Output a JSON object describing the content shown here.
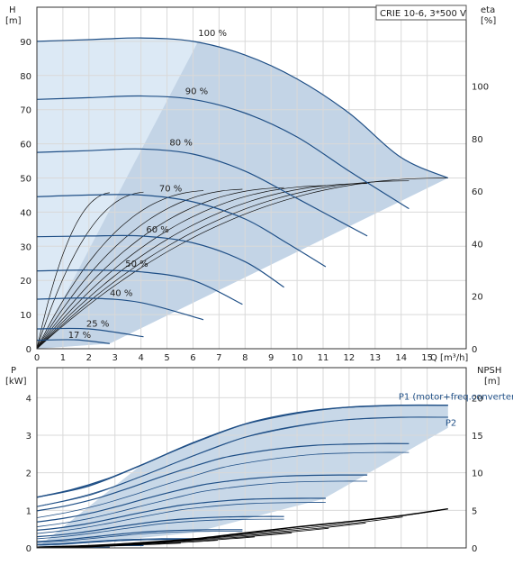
{
  "chart_data": [
    {
      "type": "line",
      "title": "CRIE 10-6, 3*500 V",
      "xlabel": "Q [m³/h]",
      "ylabel_left_symbol": "H",
      "ylabel_left_unit": "[m]",
      "ylabel_right_symbol": "eta",
      "ylabel_right_unit": "[%]",
      "xlim": [
        0,
        16.5
      ],
      "ylim_left": [
        0,
        100
      ],
      "ylim_right": [
        0,
        130
      ],
      "x_ticks": [
        "0",
        "1",
        "2",
        "3",
        "4",
        "5",
        "6",
        "7",
        "8",
        "9",
        "10",
        "11",
        "12",
        "13",
        "14",
        "15"
      ],
      "y_ticks_left": [
        "0",
        "10",
        "20",
        "30",
        "40",
        "50",
        "60",
        "70",
        "80",
        "90"
      ],
      "y_ticks_right": [
        "0",
        "20",
        "40",
        "60",
        "80",
        "100"
      ],
      "grid": true,
      "series": [
        {
          "name": "100 %",
          "x": [
            0,
            2,
            4,
            6,
            8,
            10,
            12,
            14,
            15.8
          ],
          "values": [
            90,
            90.5,
            91,
            90,
            86,
            79,
            69,
            56,
            50
          ],
          "label_at": [
            6.2,
            91.5
          ]
        },
        {
          "name": "90 %",
          "x": [
            0,
            2,
            4,
            6,
            8,
            10,
            12,
            14.3
          ],
          "values": [
            73,
            73.5,
            74,
            73,
            69,
            62,
            52,
            41
          ],
          "label_at": [
            5.7,
            74.5
          ]
        },
        {
          "name": "80 %",
          "x": [
            0,
            2,
            4,
            6,
            8,
            10,
            12.7
          ],
          "values": [
            57.5,
            58,
            58.5,
            57,
            52,
            44,
            33
          ],
          "label_at": [
            5.1,
            59.5
          ]
        },
        {
          "name": "70 %",
          "x": [
            0,
            2,
            4,
            6,
            8,
            9.6,
            11.1
          ],
          "values": [
            44.5,
            45,
            45,
            43,
            38,
            31,
            24
          ],
          "label_at": [
            4.7,
            46
          ]
        },
        {
          "name": "60 %",
          "x": [
            0,
            2,
            4,
            6,
            8,
            9.5
          ],
          "values": [
            32.8,
            33,
            33,
            31,
            25.5,
            18
          ],
          "label_at": [
            4.2,
            34
          ]
        },
        {
          "name": "50 %",
          "x": [
            0,
            2,
            4,
            6,
            7.9
          ],
          "values": [
            22.8,
            23,
            22.5,
            20,
            13
          ],
          "label_at": [
            3.4,
            24
          ]
        },
        {
          "name": "40 %",
          "x": [
            0,
            2,
            4,
            6.4
          ],
          "values": [
            14.5,
            14.8,
            13.5,
            8.5
          ],
          "label_at": [
            2.8,
            15.5
          ]
        },
        {
          "name": "25 %",
          "x": [
            0,
            2,
            4.1
          ],
          "values": [
            5.8,
            5.8,
            3.5
          ],
          "label_at": [
            1.9,
            6.5
          ]
        },
        {
          "name": "17 %",
          "x": [
            0,
            1.5,
            2.8
          ],
          "values": [
            2.5,
            2.6,
            1.5
          ],
          "label_at": [
            1.2,
            3.2
          ]
        }
      ]
    },
    {
      "type": "line",
      "xlabel": "",
      "ylabel_left_symbol": "P",
      "ylabel_left_unit": "[kW]",
      "ylabel_right_symbol": "NPSH",
      "ylabel_right_unit": "[m]",
      "xlim": [
        0,
        16.5
      ],
      "ylim_left": [
        0,
        4.8
      ],
      "ylim_right": [
        0,
        24
      ],
      "y_ticks_left": [
        "0",
        "1",
        "2",
        "3",
        "4"
      ],
      "y_ticks_right": [
        "0",
        "5",
        "10",
        "15",
        "20"
      ],
      "grid": true,
      "annotations": [
        {
          "text": "P1 (motor+freq.converter)",
          "at": [
            13.9,
            3.95
          ]
        },
        {
          "text": "P2",
          "at": [
            15.7,
            3.25
          ]
        }
      ],
      "series": [
        {
          "name": "P1 (motor+freq.converter)",
          "x": [
            0,
            2,
            4,
            6,
            8,
            10,
            12,
            14,
            15.8
          ],
          "values": [
            1.35,
            1.65,
            2.2,
            2.8,
            3.3,
            3.6,
            3.75,
            3.8,
            3.8
          ]
        },
        {
          "name": "P2",
          "x": [
            0,
            2,
            4,
            6,
            8,
            10,
            12,
            14,
            15.8
          ],
          "values": [
            1.1,
            1.4,
            1.9,
            2.45,
            2.95,
            3.25,
            3.42,
            3.48,
            3.48
          ]
        },
        {
          "name": "NPSH",
          "x": [
            0,
            2,
            4,
            6,
            8,
            10,
            12,
            14,
            15.8
          ],
          "values": [
            0.1,
            0.3,
            0.7,
            1.2,
            2.0,
            2.8,
            3.5,
            4.3,
            5.2
          ]
        }
      ]
    }
  ]
}
